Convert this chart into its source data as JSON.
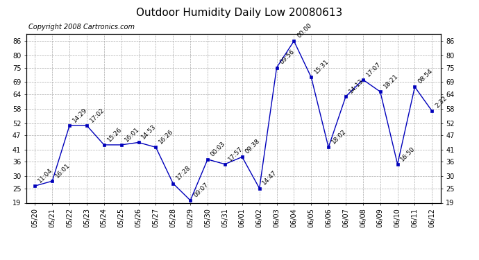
{
  "title": "Outdoor Humidity Daily Low 20080613",
  "copyright": "Copyright 2008 Cartronics.com",
  "x_labels": [
    "05/20",
    "05/21",
    "05/22",
    "05/23",
    "05/24",
    "05/25",
    "05/26",
    "05/27",
    "05/28",
    "05/29",
    "05/30",
    "05/31",
    "06/01",
    "06/02",
    "06/03",
    "06/04",
    "06/05",
    "06/06",
    "06/07",
    "06/08",
    "06/09",
    "06/10",
    "06/11",
    "06/12"
  ],
  "y_values": [
    26,
    28,
    51,
    51,
    43,
    43,
    44,
    42,
    27,
    20,
    37,
    35,
    38,
    25,
    75,
    86,
    71,
    42,
    63,
    70,
    65,
    35,
    67,
    57
  ],
  "point_labels": [
    "11:04",
    "16:01",
    "14:29",
    "17:02",
    "15:26",
    "16:01",
    "14:53",
    "16:26",
    "17:28",
    "09:07",
    "00:03",
    "17:57",
    "09:38",
    "14:47",
    "09:56",
    "00:00",
    "15:31",
    "18:02",
    "14:13",
    "17:07",
    "18:21",
    "16:50",
    "08:54",
    "2:32"
  ],
  "ylim_min": 19,
  "ylim_max": 89,
  "yticks": [
    19,
    25,
    30,
    36,
    41,
    47,
    52,
    58,
    64,
    69,
    75,
    80,
    86
  ],
  "line_color": "#0000bb",
  "marker_color": "#0000bb",
  "bg_color": "#ffffff",
  "grid_color": "#aaaaaa",
  "title_fontsize": 11,
  "copyright_fontsize": 7,
  "label_fontsize": 6.5,
  "tick_fontsize": 7
}
